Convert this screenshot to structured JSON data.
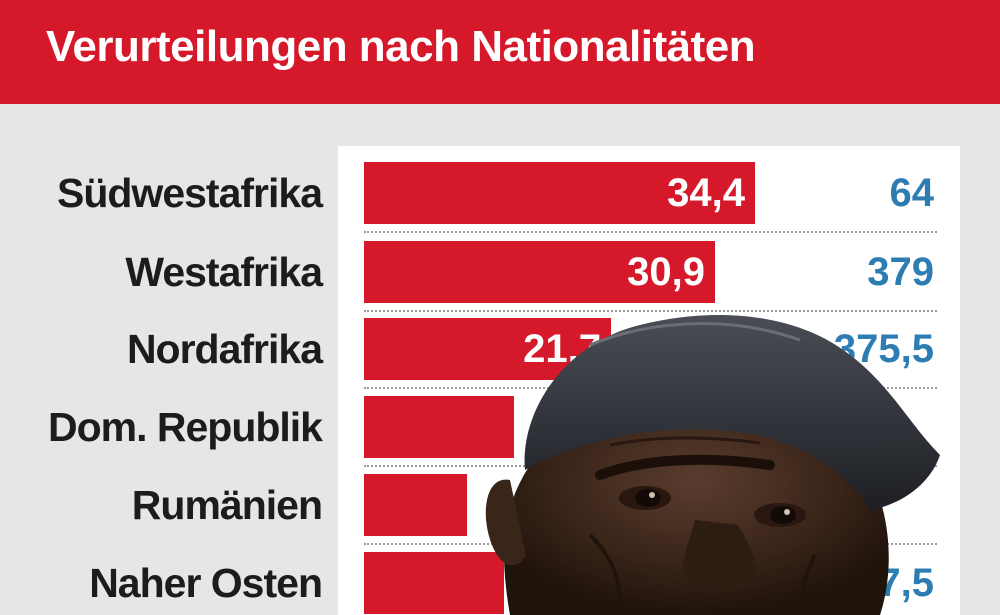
{
  "chart_data": {
    "type": "bar",
    "title": "Verurteilungen nach Nationalitäten",
    "categories": [
      "Südwestafrika",
      "Westafrika",
      "Nordafrika",
      "Dom. Republik",
      "Rumänien",
      "Naher Osten"
    ],
    "series": [
      {
        "values": [
          34.4,
          30.9,
          21.7,
          null,
          null,
          null
        ]
      },
      {
        "values": [
          64,
          379,
          375.5,
          null,
          null,
          117.5
        ]
      }
    ],
    "bar_value_labels": [
      "34,4",
      "30,9",
      "21,7",
      "",
      "",
      ""
    ],
    "right_value_labels": [
      "64",
      "379",
      "375,5",
      "",
      "",
      "117,5"
    ],
    "xlim": [
      0,
      40
    ],
    "colors": {
      "bar": "#d5192a",
      "right_value": "#2d7db3",
      "header": "#d5192a"
    }
  }
}
